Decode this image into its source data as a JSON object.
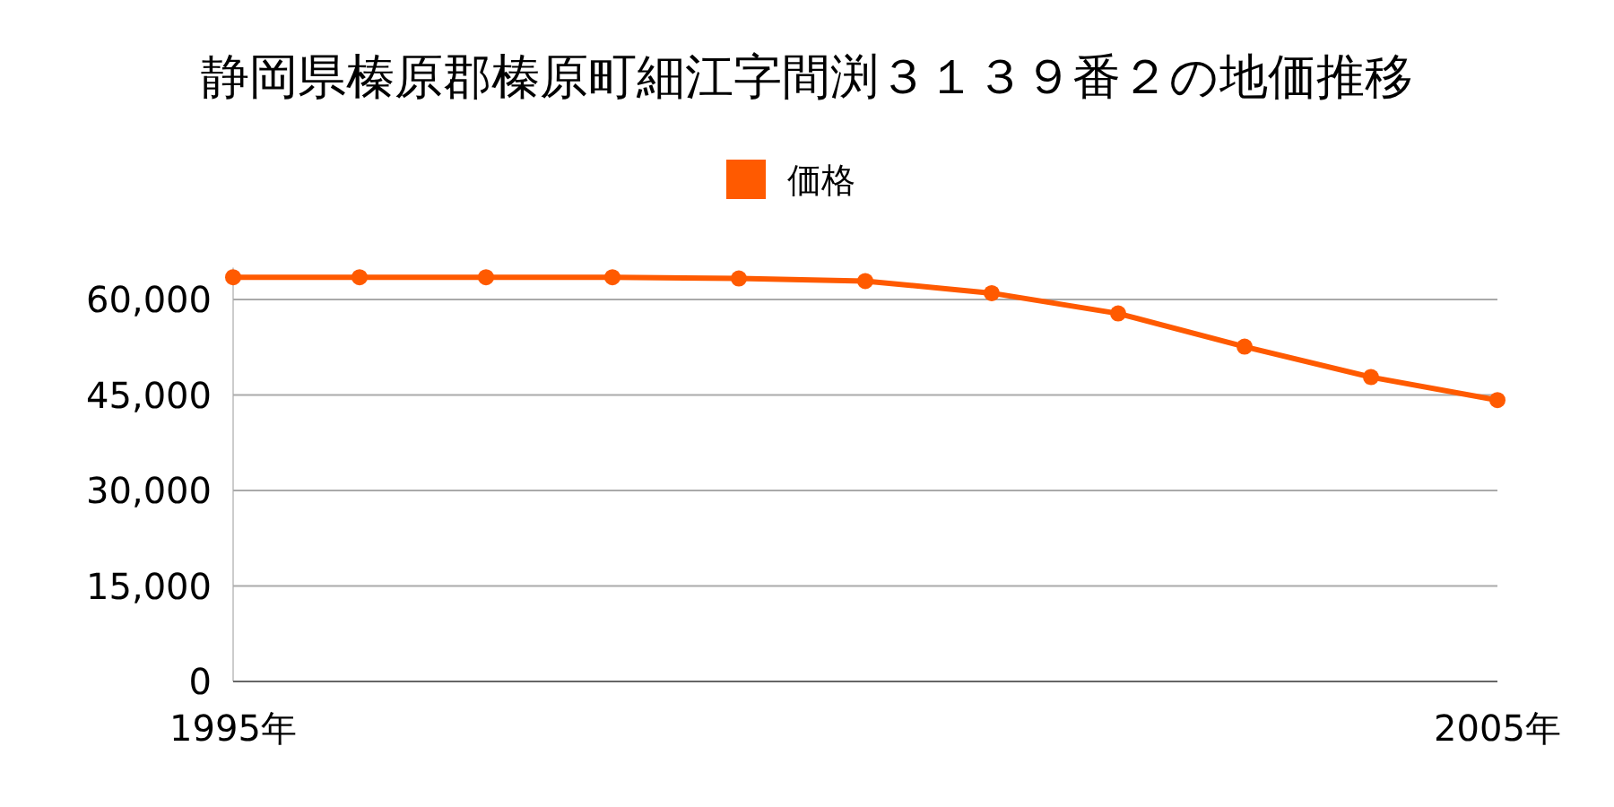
{
  "chart_data": {
    "type": "line",
    "title": "静岡県榛原郡榛原町細江字間渕３１３９番２の地価推移",
    "x": [
      1995,
      1996,
      1997,
      1998,
      1999,
      2000,
      2001,
      2002,
      2003,
      2004,
      2005
    ],
    "series": [
      {
        "name": "価格",
        "color": "#ff5a00",
        "values": [
          63500,
          63500,
          63500,
          63500,
          63300,
          62900,
          61000,
          57800,
          52600,
          47800,
          44200
        ]
      }
    ],
    "xlim": [
      1995,
      2005
    ],
    "xticks": [
      {
        "value": 1995,
        "label": "1995年"
      },
      {
        "value": 2005,
        "label": "2005年"
      }
    ],
    "ylim": [
      0,
      65000
    ],
    "yticks": [
      {
        "value": 0,
        "label": "0"
      },
      {
        "value": 15000,
        "label": "15,000"
      },
      {
        "value": 30000,
        "label": "30,000"
      },
      {
        "value": 45000,
        "label": "45,000"
      },
      {
        "value": 60000,
        "label": "60,000"
      }
    ],
    "grid": "y",
    "legend": "top",
    "marker": "circle"
  }
}
